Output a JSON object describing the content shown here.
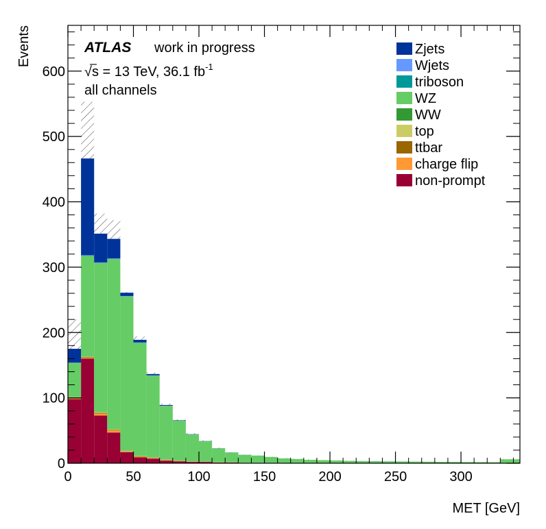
{
  "chart_data": {
    "type": "bar",
    "subtype": "stacked-histogram",
    "xlabel": "MET [GeV]",
    "ylabel": "Events",
    "xlim": [
      0,
      345
    ],
    "ylim": [
      0,
      670
    ],
    "x_ticks": [
      0,
      50,
      100,
      150,
      200,
      250,
      300
    ],
    "y_ticks": [
      0,
      100,
      200,
      300,
      400,
      500,
      600
    ],
    "legend_position": "top-right",
    "annotations": {
      "experiment": "ATLAS",
      "status": "work in progress",
      "energy_lumi": "√s = 13 TeV, 36.1 fb",
      "lumi_exponent": "-1",
      "selection": "all channels"
    },
    "bin_edges": [
      0,
      10,
      20,
      30,
      40,
      50,
      60,
      70,
      80,
      90,
      100,
      110,
      120,
      130,
      140,
      150,
      160,
      170,
      180,
      190,
      200,
      210,
      220,
      230,
      240,
      250,
      260,
      270,
      280,
      290,
      300,
      310,
      320,
      330,
      345
    ],
    "series": [
      {
        "name": "non-prompt",
        "color": "#990033",
        "values": [
          98,
          160,
          73,
          47,
          17,
          9,
          7,
          4,
          3,
          2,
          2,
          1,
          1,
          0.5,
          0.5,
          0.5,
          0.3,
          0.3,
          0.2,
          0.2,
          0.2,
          0.1,
          0.1,
          0.1,
          0.1,
          0.1,
          0.1,
          0.1,
          0.1,
          0.1,
          0,
          0,
          0,
          0
        ]
      },
      {
        "name": "charge flip",
        "color": "#ff9933",
        "values": [
          1,
          1,
          3,
          3,
          1,
          1,
          1,
          1,
          0.5,
          0.5,
          0.3,
          0.3,
          0.2,
          0.2,
          0.1,
          0.1,
          0.1,
          0.1,
          0,
          0,
          0,
          0,
          0,
          0,
          0,
          0,
          0,
          0,
          0,
          0,
          0,
          0,
          0,
          0
        ]
      },
      {
        "name": "ttbar",
        "color": "#996600",
        "values": [
          1,
          1,
          1,
          1,
          0.5,
          0.5,
          0.5,
          0.3,
          0.2,
          0.2,
          0.1,
          0.1,
          0.1,
          0,
          0,
          0,
          0,
          0,
          0,
          0,
          0,
          0,
          0,
          0,
          0,
          0,
          0,
          0,
          0,
          0,
          0,
          0,
          0,
          0
        ]
      },
      {
        "name": "top",
        "color": "#cccc66",
        "values": [
          1,
          1,
          1,
          1,
          0.5,
          0.5,
          0.3,
          0.3,
          0.2,
          0.1,
          0.1,
          0.1,
          0,
          0,
          0,
          0,
          0,
          0,
          0,
          0,
          0,
          0,
          0,
          0,
          0,
          0,
          0,
          0,
          0,
          0,
          0,
          0,
          0,
          0
        ]
      },
      {
        "name": "WW",
        "color": "#339933",
        "values": [
          0.3,
          0.3,
          0.3,
          0.3,
          0.2,
          0.2,
          0.2,
          0.1,
          0.1,
          0.1,
          0.1,
          0,
          0,
          0,
          0,
          0,
          0,
          0,
          0,
          0,
          0,
          0,
          0,
          0,
          0,
          0,
          0,
          0,
          0,
          0,
          0,
          0,
          0,
          0
        ]
      },
      {
        "name": "WZ",
        "color": "#66cc66",
        "values": [
          52,
          154,
          228,
          260,
          236,
          173,
          125,
          82,
          61,
          41,
          31,
          21,
          15,
          12,
          11,
          9,
          7,
          6,
          5,
          4.5,
          4,
          3.5,
          3.2,
          3,
          2.8,
          2.6,
          2.4,
          2.2,
          2,
          1.9,
          1.8,
          1.7,
          1.6,
          6
        ]
      },
      {
        "name": "triboson",
        "color": "#009999",
        "values": [
          0.3,
          0.5,
          0.5,
          0.5,
          0.4,
          0.3,
          0.3,
          0.2,
          0.2,
          0.2,
          0.1,
          0.1,
          0.1,
          0.1,
          0.1,
          0,
          0,
          0,
          0,
          0,
          0,
          0,
          0,
          0,
          0,
          0,
          0,
          0,
          0,
          0,
          0,
          0,
          0,
          0
        ]
      },
      {
        "name": "Wjets",
        "color": "#6699ff",
        "values": [
          0.5,
          0.5,
          0.5,
          0.5,
          0.3,
          0.3,
          0.2,
          0.2,
          0.1,
          0.1,
          0.1,
          0,
          0,
          0,
          0,
          0,
          0,
          0,
          0,
          0,
          0,
          0,
          0,
          0,
          0,
          0,
          0,
          0,
          0,
          0,
          0,
          0,
          0,
          0
        ]
      },
      {
        "name": "Zjets",
        "color": "#003399",
        "values": [
          21,
          148,
          44,
          30,
          5,
          4,
          2,
          1,
          0.5,
          0.3,
          0.2,
          0.2,
          0.1,
          0.1,
          0,
          0,
          0,
          0,
          0,
          0,
          0,
          0,
          0,
          0,
          0,
          0,
          0,
          0,
          0,
          0,
          0,
          0,
          0,
          0
        ]
      }
    ],
    "uncertainty_band": {
      "style": "hatched",
      "upper": [
        220,
        553,
        382,
        372,
        262,
        194,
        139,
        91,
        67,
        46,
        35,
        24,
        17,
        13,
        12,
        10,
        8,
        7,
        6,
        5,
        4.5,
        4,
        3.5,
        3.3,
        3,
        2.8,
        2.6,
        2.4,
        2.2,
        2,
        1.9,
        1.8,
        1.7,
        6.5
      ],
      "lower": [
        135,
        380,
        320,
        316,
        250,
        186,
        133,
        86,
        64,
        43,
        33,
        22,
        16,
        12,
        11,
        9,
        7,
        6,
        5,
        4.5,
        4,
        3.5,
        3.1,
        2.9,
        2.7,
        2.5,
        2.3,
        2.1,
        1.9,
        1.8,
        1.7,
        1.6,
        1.5,
        5.5
      ]
    },
    "legend_order": [
      "Zjets",
      "Wjets",
      "triboson",
      "WZ",
      "WW",
      "top",
      "ttbar",
      "charge flip",
      "non-prompt"
    ]
  }
}
